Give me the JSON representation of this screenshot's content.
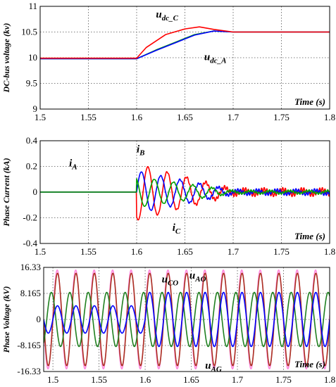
{
  "chart_data": [
    {
      "type": "line",
      "title": "",
      "xlabel": "Time (s)",
      "ylabel": "DC-bus voltage (kv)",
      "xlim": [
        1.5,
        1.8
      ],
      "ylim": [
        9,
        11
      ],
      "xticks": [
        "1.5",
        "1.55",
        "1.6",
        "1.65",
        "1.7",
        "1.75",
        "1.8"
      ],
      "yticks": [
        "9",
        "9.5",
        "10",
        "10.5",
        "11"
      ],
      "grid": true,
      "series": [
        {
          "color": "#00a000",
          "x": [
            1.5,
            1.6,
            1.62,
            1.64,
            1.66,
            1.68,
            1.7,
            1.8
          ],
          "y": [
            9.98,
            9.98,
            10.15,
            10.3,
            10.45,
            10.52,
            10.5,
            10.5
          ]
        },
        {
          "color": "#0000ff",
          "x": [
            1.5,
            1.6,
            1.62,
            1.64,
            1.66,
            1.68,
            1.7,
            1.8
          ],
          "y": [
            9.98,
            9.98,
            10.14,
            10.29,
            10.44,
            10.52,
            10.5,
            10.5
          ]
        },
        {
          "color": "#ff0000",
          "x": [
            1.5,
            1.6,
            1.61,
            1.63,
            1.65,
            1.665,
            1.68,
            1.7,
            1.8
          ],
          "y": [
            9.99,
            9.99,
            10.2,
            10.45,
            10.56,
            10.6,
            10.55,
            10.5,
            10.5
          ]
        }
      ],
      "annotations": [
        {
          "base": "u",
          "sub": "dc_C",
          "x": 1.62,
          "y": 10.78
        },
        {
          "base": "u",
          "sub": "dc_A",
          "x": 1.67,
          "y": 9.95
        }
      ]
    },
    {
      "type": "line",
      "title": "",
      "xlabel": "Time (s)",
      "ylabel": "Phase Current (kA)",
      "xlim": [
        1.5,
        1.8
      ],
      "ylim": [
        -0.4,
        0.4
      ],
      "xticks": [
        "1.5",
        "1.55",
        "1.6",
        "1.65",
        "1.7",
        "1.75",
        "1.8"
      ],
      "yticks": [
        "-0.4",
        "-0.2",
        "0",
        "0.2",
        "0.4"
      ],
      "grid": true,
      "series": [
        {
          "color": "#ff0000",
          "shape": "damped-sine",
          "freq_hz": 50,
          "amp": 0.2,
          "phase_deg": 240,
          "t_start": 1.6,
          "decay_end": 1.7,
          "residual": 0.02
        },
        {
          "color": "#0000ff",
          "shape": "damped-sine",
          "freq_hz": 50,
          "amp": 0.15,
          "phase_deg": 0,
          "t_start": 1.6,
          "decay_end": 1.7,
          "residual": 0.015
        },
        {
          "color": "#00a000",
          "shape": "damped-sine",
          "freq_hz": 50,
          "amp": 0.11,
          "phase_deg": 120,
          "t_start": 1.6,
          "decay_end": 1.7,
          "residual": 0.01
        }
      ],
      "annotations": [
        {
          "base": "i",
          "sub": "A",
          "x": 1.53,
          "y": 0.2
        },
        {
          "base": "i",
          "sub": "B",
          "x": 1.6,
          "y": 0.31
        },
        {
          "base": "i",
          "sub": "C",
          "x": 1.637,
          "y": -0.3
        }
      ]
    },
    {
      "type": "line",
      "title": "",
      "xlabel": "Time (s)",
      "ylabel": "Phase Voltage (kV)",
      "xlim": [
        1.49,
        1.8
      ],
      "ylim": [
        -16.33,
        16.33
      ],
      "xticks": [
        "1.5",
        "1.55",
        "1.6",
        "1.65",
        "1.7",
        "1.75",
        "1.8"
      ],
      "yticks": [
        "-16.33",
        "-8.165",
        "0",
        "8.165",
        "16.33"
      ],
      "grid": true,
      "series": [
        {
          "color": "#ff88dd",
          "shape": "sine",
          "freq_hz": 50,
          "amp": 15.5,
          "phase_deg": 5
        },
        {
          "color": "#aa3322",
          "shape": "sine",
          "freq_hz": 50,
          "amp": 14.5,
          "phase_deg": 0
        },
        {
          "color": "#208020",
          "shape": "sine",
          "freq_hz": 50,
          "amp": 8.5,
          "phase_deg": 120
        },
        {
          "color": "#0000ff",
          "shape": "sine",
          "freq_hz": 50,
          "amp": 4.3,
          "phase_deg": 0,
          "amp_after": 8.5,
          "t_change": 1.6
        }
      ],
      "annotations": [
        {
          "base": "u",
          "sub": "CO",
          "x": 1.618,
          "y": 11.6
        },
        {
          "base": "u",
          "sub": "AO",
          "x": 1.648,
          "y": 12.8
        },
        {
          "base": "u",
          "sub": "AG",
          "x": 1.665,
          "y": -15.4
        }
      ]
    }
  ]
}
